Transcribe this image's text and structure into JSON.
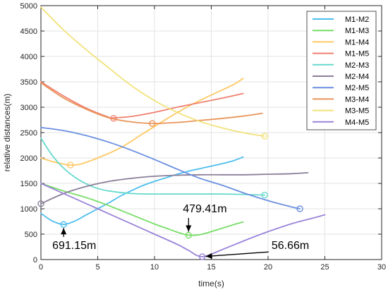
{
  "chart_data": {
    "type": "line",
    "xlabel": "time(s)",
    "ylabel": "relative distances(m)",
    "xlim": [
      0,
      30
    ],
    "ylim": [
      0,
      5000
    ],
    "x_ticks": [
      0,
      5,
      10,
      15,
      20,
      25,
      30
    ],
    "y_ticks": [
      0,
      500,
      1000,
      1500,
      2000,
      2500,
      3000,
      3500,
      4000,
      4500,
      5000
    ],
    "grid": true,
    "legend_position": "top-right",
    "series": [
      {
        "name": "M1-M2",
        "color": "#4DBEEE",
        "x": [
          0,
          1,
          2,
          3,
          4,
          5,
          6,
          7,
          8,
          9,
          10,
          11,
          12,
          13,
          14,
          15,
          16,
          17,
          17.8
        ],
        "y": [
          910,
          760,
          691,
          760,
          880,
          1000,
          1120,
          1250,
          1360,
          1460,
          1540,
          1610,
          1680,
          1740,
          1790,
          1840,
          1890,
          1950,
          2020
        ],
        "marker": {
          "x": 2.0,
          "y": 691
        }
      },
      {
        "name": "M1-M3",
        "color": "#77DD66",
        "x": [
          0,
          2,
          4,
          6,
          8,
          10,
          11,
          12,
          13,
          14,
          15,
          16,
          17,
          17.8
        ],
        "y": [
          1500,
          1350,
          1220,
          1060,
          880,
          700,
          620,
          540,
          480,
          490,
          550,
          620,
          690,
          740
        ],
        "marker": {
          "x": 13.0,
          "y": 479
        }
      },
      {
        "name": "M1-M4",
        "color": "#FFC966",
        "x": [
          0,
          1,
          2,
          2.6,
          3.5,
          5,
          7,
          9,
          11,
          13,
          15,
          17,
          17.8
        ],
        "y": [
          2000,
          1930,
          1880,
          1860,
          1880,
          2000,
          2200,
          2480,
          2760,
          3020,
          3240,
          3450,
          3570
        ],
        "marker": {
          "x": 2.6,
          "y": 1860
        }
      },
      {
        "name": "M1-M5",
        "color": "#F08070",
        "x": [
          0,
          2,
          4,
          6,
          6.4,
          8,
          10,
          12,
          14,
          16,
          17.8
        ],
        "y": [
          3500,
          3220,
          2980,
          2800,
          2790,
          2820,
          2900,
          3000,
          3090,
          3180,
          3270
        ],
        "marker": {
          "x": 6.4,
          "y": 2780
        }
      },
      {
        "name": "M2-M3",
        "color": "#66D9CC",
        "x": [
          0,
          1,
          2,
          3,
          4,
          5,
          6,
          8,
          10,
          12,
          14,
          16,
          18,
          19.7
        ],
        "y": [
          2390,
          2050,
          1800,
          1620,
          1490,
          1400,
          1350,
          1300,
          1290,
          1290,
          1290,
          1290,
          1280,
          1270
        ],
        "marker": {
          "x": 19.7,
          "y": 1270
        }
      },
      {
        "name": "M2-M4",
        "color": "#8B7F9A",
        "x": [
          0,
          2,
          4,
          6,
          8,
          10,
          12,
          14,
          16,
          18,
          20,
          22,
          23.5
        ],
        "y": [
          1100,
          1300,
          1440,
          1540,
          1600,
          1640,
          1660,
          1670,
          1670,
          1670,
          1680,
          1690,
          1710
        ],
        "marker": {
          "x": 0.0,
          "y": 1100
        }
      },
      {
        "name": "M2-M5",
        "color": "#6A8FE0",
        "x": [
          0,
          2,
          4,
          6,
          8,
          10,
          12,
          14,
          16,
          18,
          20,
          22,
          22.8
        ],
        "y": [
          2600,
          2540,
          2440,
          2310,
          2150,
          1970,
          1780,
          1600,
          1460,
          1300,
          1160,
          1040,
          1000
        ],
        "marker": {
          "x": 22.8,
          "y": 1000
        }
      },
      {
        "name": "M3-M4",
        "color": "#E8955A",
        "x": [
          0,
          2,
          4,
          6,
          8,
          9.8,
          12,
          14,
          16,
          18,
          19.5
        ],
        "y": [
          3480,
          3180,
          2960,
          2790,
          2710,
          2680,
          2700,
          2740,
          2780,
          2830,
          2880
        ],
        "marker": {
          "x": 9.8,
          "y": 2680
        }
      },
      {
        "name": "M3-M5",
        "color": "#F2E27A",
        "x": [
          0,
          2,
          4,
          6,
          8,
          10,
          12,
          14,
          16,
          18,
          19.7
        ],
        "y": [
          4970,
          4520,
          4130,
          3770,
          3420,
          3130,
          2900,
          2720,
          2590,
          2490,
          2430
        ],
        "marker": {
          "x": 19.7,
          "y": 2430
        }
      },
      {
        "name": "M4-M5",
        "color": "#9A84D9",
        "x": [
          0,
          2,
          4,
          6,
          8,
          10,
          12,
          13,
          14.2,
          16,
          18,
          20,
          22,
          24,
          25
        ],
        "y": [
          1500,
          1300,
          1100,
          900,
          700,
          500,
          300,
          180,
          57,
          200,
          380,
          550,
          700,
          820,
          880
        ],
        "marker": {
          "x": 14.2,
          "y": 57
        }
      }
    ],
    "annotations": [
      {
        "text": "691.15m",
        "point": {
          "x": 2.0,
          "y": 691
        },
        "text_at": {
          "x": 1.0,
          "y": 210
        }
      },
      {
        "text": "479.41m",
        "point": {
          "x": 13.0,
          "y": 479
        },
        "text_at": {
          "x": 12.5,
          "y": 930
        }
      },
      {
        "text": "56.66m",
        "point": {
          "x": 14.2,
          "y": 57
        },
        "text_at": {
          "x": 20.3,
          "y": 210
        }
      }
    ]
  }
}
